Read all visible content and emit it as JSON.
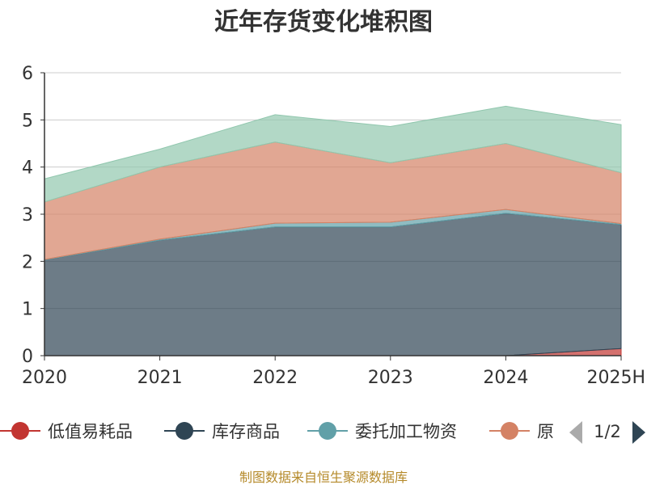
{
  "chart_data": {
    "type": "area",
    "stacked": true,
    "title": "近年存货变化堆积图",
    "ylabel": "",
    "categories": [
      "2020",
      "2021",
      "2022",
      "2023",
      "2024",
      "2025H"
    ],
    "ylim": [
      0,
      6
    ],
    "yticks": [
      0,
      1,
      2,
      3,
      4,
      5,
      6
    ],
    "grid": true,
    "series": [
      {
        "name": "低值易耗品",
        "color": "#c23531",
        "values": [
          0,
          0,
          0,
          0,
          0,
          0.15
        ]
      },
      {
        "name": "库存商品",
        "color": "#2f4554",
        "values": [
          2.03,
          2.45,
          2.73,
          2.73,
          3.02,
          2.63
        ]
      },
      {
        "name": "委托加工物资",
        "color": "#61a0a8",
        "values": [
          0.01,
          0.02,
          0.08,
          0.1,
          0.08,
          0.02
        ]
      },
      {
        "name": "原",
        "color": "#d48265",
        "values": [
          1.22,
          1.53,
          1.72,
          1.26,
          1.4,
          1.08
        ]
      },
      {
        "name": "",
        "color": "#91c7ae",
        "values": [
          0.49,
          0.38,
          0.58,
          0.77,
          0.79,
          1.02
        ]
      }
    ],
    "legend": {
      "position": "bottom",
      "page": "1/2"
    },
    "source": "制图数据来自恒生聚源数据库"
  }
}
